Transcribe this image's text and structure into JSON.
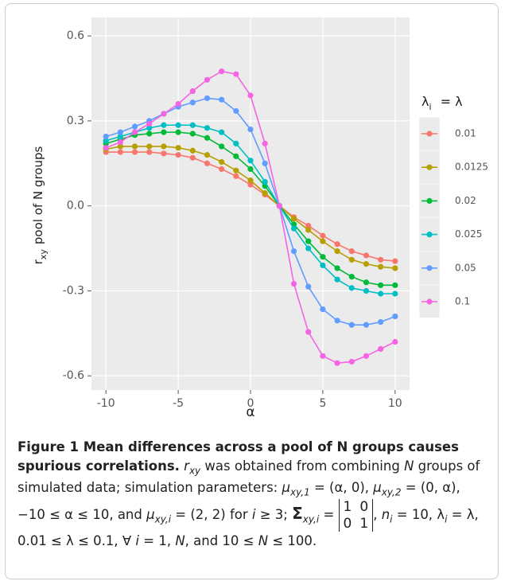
{
  "chart_data": {
    "type": "line",
    "x_label": "α",
    "y_label": [
      {
        "i": "r"
      },
      {
        "sub": "xy"
      },
      "pool of N groups"
    ],
    "legend_title": [
      "λ",
      {
        "sub": "i"
      },
      " = λ"
    ],
    "legend_position": "right",
    "grid": true,
    "x": [
      -10,
      -9,
      -8,
      -7,
      -6,
      -5,
      -4,
      -3,
      -2,
      -1,
      0,
      1,
      2,
      3,
      4,
      5,
      6,
      7,
      8,
      9,
      10
    ],
    "xlim": [
      -11,
      11
    ],
    "xticks": [
      -10,
      -5,
      0,
      5,
      10
    ],
    "ylim": [
      -0.65,
      0.665
    ],
    "yticks": [
      {
        "value": -0.6,
        "label": "-0.6"
      },
      {
        "value": -0.3,
        "label": "-0.3"
      },
      {
        "value": 0,
        "label": "0.0"
      },
      {
        "value": 0.3,
        "label": "0.3"
      },
      {
        "value": 0.6,
        "label": "0.6"
      }
    ],
    "series": [
      {
        "name": "0.01",
        "color": "#F8766D",
        "values": [
          0.19,
          0.19,
          0.19,
          0.19,
          0.185,
          0.18,
          0.17,
          0.15,
          0.13,
          0.105,
          0.075,
          0.04,
          0,
          -0.04,
          -0.07,
          -0.105,
          -0.135,
          -0.16,
          -0.175,
          -0.19,
          -0.195
        ]
      },
      {
        "name": "0.0125",
        "color": "#B79F00",
        "values": [
          0.2,
          0.21,
          0.21,
          0.21,
          0.21,
          0.205,
          0.195,
          0.18,
          0.155,
          0.125,
          0.09,
          0.045,
          0,
          -0.045,
          -0.085,
          -0.125,
          -0.16,
          -0.19,
          -0.205,
          -0.215,
          -0.22
        ]
      },
      {
        "name": "0.02",
        "color": "#00BA38",
        "values": [
          0.22,
          0.235,
          0.25,
          0.255,
          0.26,
          0.26,
          0.255,
          0.24,
          0.21,
          0.175,
          0.13,
          0.07,
          0,
          -0.065,
          -0.125,
          -0.18,
          -0.22,
          -0.25,
          -0.27,
          -0.28,
          -0.28
        ]
      },
      {
        "name": "0.025",
        "color": "#00BFC4",
        "values": [
          0.23,
          0.245,
          0.26,
          0.275,
          0.285,
          0.285,
          0.285,
          0.275,
          0.26,
          0.22,
          0.16,
          0.085,
          0,
          -0.08,
          -0.15,
          -0.21,
          -0.26,
          -0.29,
          -0.3,
          -0.31,
          -0.31
        ]
      },
      {
        "name": "0.05",
        "color": "#619CFF",
        "values": [
          0.245,
          0.26,
          0.28,
          0.3,
          0.325,
          0.35,
          0.365,
          0.38,
          0.375,
          0.335,
          0.27,
          0.15,
          0,
          -0.16,
          -0.285,
          -0.365,
          -0.405,
          -0.42,
          -0.42,
          -0.41,
          -0.39
        ]
      },
      {
        "name": "0.1",
        "color": "#F564E3",
        "values": [
          0.205,
          0.225,
          0.26,
          0.29,
          0.325,
          0.36,
          0.405,
          0.445,
          0.475,
          0.465,
          0.39,
          0.22,
          0,
          -0.275,
          -0.445,
          -0.53,
          -0.555,
          -0.55,
          -0.53,
          -0.505,
          -0.48
        ]
      }
    ]
  },
  "caption": {
    "title": "Figure 1 Mean differences across a pool of N groups causes spurious correlations.",
    "body": [
      {
        "i": "r"
      },
      {
        "sub": "xy"
      },
      " was obtained from combining ",
      {
        "i": "N"
      },
      " groups of simulated data; simulation parameters: ",
      {
        "i": "μ"
      },
      {
        "sub": "xy,1"
      },
      " = (α, 0), ",
      {
        "i": "μ"
      },
      {
        "sub": "xy,2"
      },
      " = (0, α), −10 ≤ α ≤ 10, and ",
      {
        "i": "μ"
      },
      {
        "sub": "xy,i"
      },
      " = (2, 2) for ",
      {
        "i": "i"
      },
      " ≥ 3; ",
      {
        "b": "Σ"
      },
      {
        "sub": "xy,i"
      },
      " = ",
      {
        "matrix": [
          [
            "1",
            "0"
          ],
          [
            "0",
            "1"
          ]
        ]
      },
      ", ",
      {
        "i": "n"
      },
      {
        "sub": "i"
      },
      " = 10, λ",
      {
        "sub": "i"
      },
      " = λ, 0.01 ≤ λ ≤ 0.1, ∀ ",
      {
        "i": "i"
      },
      " = 1, ",
      {
        "i": "N"
      },
      ", and 10 ≤ ",
      {
        "i": "N"
      },
      " ≤ 100."
    ]
  }
}
